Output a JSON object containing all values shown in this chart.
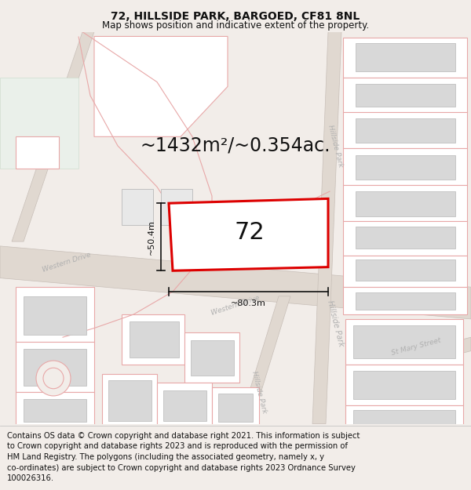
{
  "title": "72, HILLSIDE PARK, BARGOED, CF81 8NL",
  "subtitle": "Map shows position and indicative extent of the property.",
  "area_text": "~1432m²/~0.354ac.",
  "plot_label": "72",
  "dim_h": "~80.3m",
  "dim_v": "~50.4m",
  "footer": "Contains OS data © Crown copyright and database right 2021. This information is subject\nto Crown copyright and database rights 2023 and is reproduced with the permission of\nHM Land Registry. The polygons (including the associated geometry, namely x, y\nco-ordinates) are subject to Crown copyright and database rights 2023 Ordnance Survey\n100026316.",
  "bg_color": "#f2ede9",
  "map_bg": "#ffffff",
  "building_stroke": "#e8a8a8",
  "building_fill": "#f5f0f0",
  "building_inner_fill": "#d8d8d8",
  "building_inner_stroke": "#c0c0c0",
  "plot_color": "#dd0000",
  "plot_fill": "#ffffff",
  "dim_color": "#111111",
  "road_fill": "#e0d8d0",
  "road_stroke": "#c8bfb8",
  "green_fill": "#e8ede8",
  "title_fontsize": 10,
  "subtitle_fontsize": 8.5,
  "area_fontsize": 17,
  "label_fontsize": 22,
  "footer_fontsize": 7.2,
  "street_label_color": "#b0b0b0",
  "street_label_fontsize": 6.5
}
